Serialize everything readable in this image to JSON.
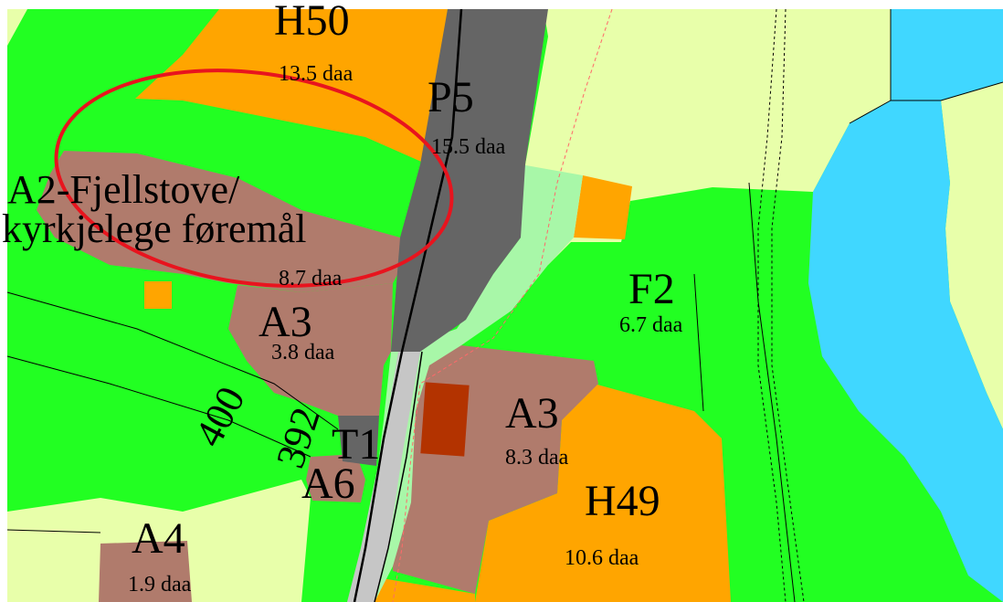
{
  "colors": {
    "agriculture": "#22ff22",
    "residential": "#ffa500",
    "parking": "#656565",
    "meadow": "#e8ffaa",
    "water": "#40d7ff",
    "community": "#b07b6c",
    "green_strip": "#a8f7a8",
    "building": "#b33300",
    "road": "#c6c6c6",
    "highlight": "#e8141e",
    "boundary": "#000000",
    "dashed": "#ff6a6a"
  },
  "zones": [
    {
      "code": "H50",
      "area": "13.5 daa"
    },
    {
      "code": "P5",
      "area": "15.5 daa"
    },
    {
      "code": "A2-Fjellstove/",
      "code_line2": "kyrkjelege føremål",
      "area": "8.7 daa"
    },
    {
      "code": "A3",
      "area": "3.8 daa"
    },
    {
      "code": "F2",
      "area": "6.7 daa"
    },
    {
      "code": "A3",
      "area": "8.3 daa"
    },
    {
      "code": "H49",
      "area": "10.6 daa"
    },
    {
      "code": "T1",
      "area": ""
    },
    {
      "code": "A6",
      "area": ""
    },
    {
      "code": "A4",
      "area": "1.9 daa"
    }
  ],
  "contours": [
    {
      "elevation": "400"
    },
    {
      "elevation": "392"
    }
  ]
}
